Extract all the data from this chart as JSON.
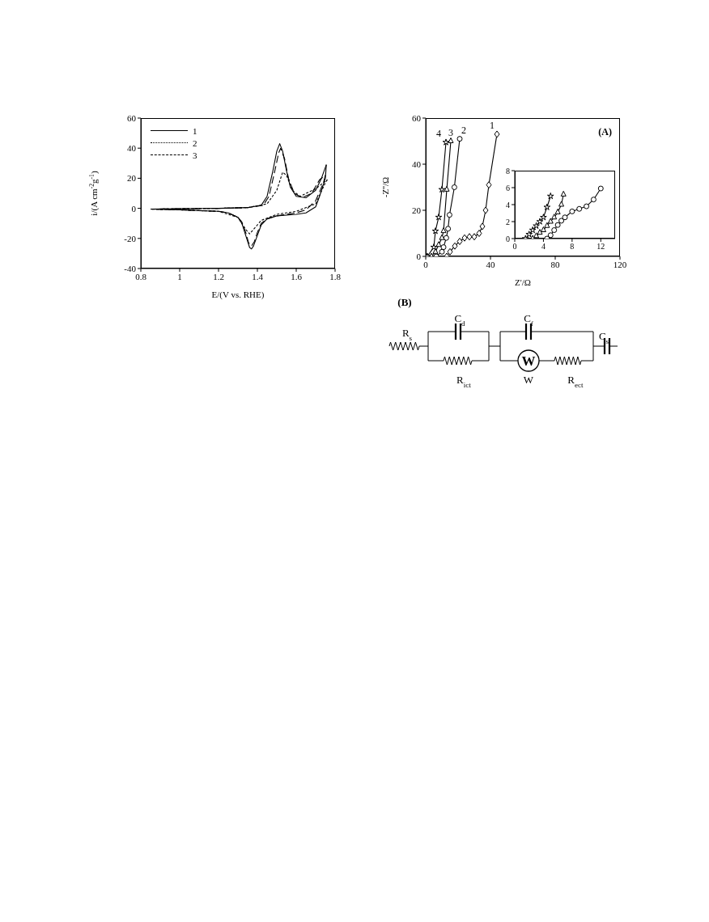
{
  "chart_data": [
    {
      "type": "line",
      "xlabel": "E/(V vs. RHE)",
      "ylabel": "i/(A cm$^{-2}$g$^{-1}$)",
      "xlim": [
        0.8,
        1.8
      ],
      "xticks": [
        0.8,
        1,
        1.2,
        1.4,
        1.6,
        1.8
      ],
      "ylim": [
        -40,
        60
      ],
      "yticks": [
        -40,
        -20,
        0,
        20,
        40,
        60
      ],
      "legend": "top left",
      "series": [
        {
          "name": "1",
          "color": "#000000",
          "line_style": "solid",
          "x": [
            0.85,
            1.0,
            1.2,
            1.35,
            1.42,
            1.45,
            1.48,
            1.5,
            1.515,
            1.53,
            1.55,
            1.57,
            1.6,
            1.65,
            1.7,
            1.73,
            1.755
          ],
          "values": [
            -0.5,
            -0.3,
            0,
            0.5,
            2,
            8,
            25,
            38,
            43,
            38,
            25,
            14,
            8,
            7,
            12,
            20,
            29
          ]
        },
        {
          "color": "#000000",
          "line_style": "solid",
          "x": [
            1.755,
            1.75,
            1.72,
            1.7,
            1.65,
            1.6,
            1.5,
            1.45,
            1.42,
            1.4,
            1.38,
            1.37,
            1.36,
            1.34,
            1.32,
            1.3,
            1.25,
            1.2,
            1.0,
            0.85
          ],
          "values": [
            29,
            20,
            8,
            1,
            -3,
            -4,
            -5,
            -7,
            -11,
            -18,
            -25,
            -27,
            -26,
            -18,
            -10,
            -6,
            -3,
            -2,
            -1,
            -0.5
          ]
        },
        {
          "name": "2",
          "color": "#000000",
          "line_style": "dotted",
          "x": [
            0.85,
            1.0,
            1.2,
            1.35,
            1.45,
            1.5,
            1.53,
            1.55,
            1.58,
            1.62,
            1.7,
            1.76
          ],
          "values": [
            -0.5,
            -0.3,
            0,
            0.5,
            3,
            12,
            24,
            22,
            12,
            8,
            13,
            19
          ]
        },
        {
          "color": "#000000",
          "line_style": "dotted",
          "x": [
            1.76,
            1.75,
            1.7,
            1.6,
            1.5,
            1.42,
            1.38,
            1.36,
            1.34,
            1.3,
            1.2,
            1.0,
            0.85
          ],
          "values": [
            19,
            17,
            3,
            -2,
            -4,
            -8,
            -14,
            -17,
            -14,
            -6,
            -2,
            -1,
            -0.5
          ]
        },
        {
          "name": "3",
          "color": "#000000",
          "line_style": "dashed",
          "x": [
            0.85,
            1.0,
            1.2,
            1.35,
            1.43,
            1.46,
            1.49,
            1.51,
            1.52,
            1.54,
            1.56,
            1.59,
            1.63,
            1.68,
            1.72,
            1.75
          ],
          "values": [
            -0.5,
            -0.3,
            0,
            0.5,
            2,
            8,
            25,
            37,
            40,
            33,
            20,
            10,
            7,
            10,
            19,
            22
          ]
        },
        {
          "color": "#000000",
          "line_style": "dashed",
          "x": [
            1.75,
            1.74,
            1.7,
            1.65,
            1.6,
            1.5,
            1.45,
            1.42,
            1.4,
            1.385,
            1.37,
            1.355,
            1.34,
            1.32,
            1.3,
            1.25,
            1.2,
            1.0,
            0.85
          ],
          "values": [
            22,
            17,
            5,
            -1,
            -3,
            -5,
            -7,
            -10,
            -16,
            -22,
            -25,
            -23,
            -16,
            -9,
            -6,
            -3,
            -2,
            -1,
            -0.5
          ]
        }
      ]
    },
    {
      "type": "line",
      "xlabel": "Z'/Ω",
      "ylabel": "-Z''/Ω",
      "xlim": [
        0,
        120
      ],
      "xticks": [
        0,
        40,
        80,
        120
      ],
      "ylim": [
        0,
        60
      ],
      "yticks": [
        0,
        20,
        40,
        60
      ],
      "annotations": [
        "(A)"
      ],
      "series": [
        {
          "name": "1",
          "color": "#000000",
          "marker": "diamond",
          "x": [
            13,
            15,
            18,
            21,
            24,
            27,
            30,
            33,
            35,
            37,
            39,
            44
          ],
          "values": [
            0,
            2,
            4.5,
            6.5,
            8,
            8.5,
            8.5,
            10,
            13,
            20,
            31,
            53
          ]
        },
        {
          "name": "2",
          "color": "#000000",
          "marker": "circle",
          "x": [
            6.5,
            10,
            11,
            12.7,
            13.8,
            14.7,
            17.7,
            21
          ],
          "values": [
            0,
            2,
            4,
            8,
            12,
            18,
            30,
            51
          ]
        },
        {
          "name": "3",
          "color": "#000000",
          "marker": "triangle",
          "x": [
            3.5,
            6,
            8,
            10,
            11,
            13,
            15.5
          ],
          "values": [
            0,
            2,
            5,
            8,
            11,
            29,
            50
          ]
        },
        {
          "name": "4",
          "color": "#000000",
          "marker": "star",
          "x": [
            1,
            5,
            6,
            8,
            10,
            12.5
          ],
          "values": [
            0,
            4,
            11,
            17,
            29,
            49.5
          ]
        }
      ]
    },
    {
      "type": "line",
      "xlim": [
        0,
        14
      ],
      "xticks": [
        0,
        4,
        8,
        12
      ],
      "ylim": [
        0,
        8
      ],
      "yticks": [
        0,
        2,
        4,
        6,
        8
      ],
      "series": [
        {
          "color": "#000000",
          "marker": "star",
          "x": [
            1.5,
            2,
            2.5,
            3,
            3.5,
            4,
            4.5,
            5
          ],
          "values": [
            0,
            0.5,
            1,
            1.5,
            2,
            2.5,
            3.7,
            5
          ]
        },
        {
          "color": "#000000",
          "marker": "triangle",
          "x": [
            2.5,
            3,
            3.5,
            4,
            4.5,
            5,
            5.5,
            6,
            6.5,
            6.8
          ],
          "values": [
            0,
            0.3,
            0.7,
            1,
            1.5,
            2,
            2.5,
            3.1,
            4,
            5.2
          ]
        },
        {
          "color": "#000000",
          "marker": "circle",
          "x": [
            4.5,
            5,
            5.5,
            6,
            6.5,
            7,
            8,
            9,
            10,
            11,
            12
          ],
          "values": [
            0,
            0.4,
            1,
            1.6,
            2.1,
            2.5,
            3.2,
            3.5,
            3.8,
            4.6,
            5.9
          ]
        }
      ]
    },
    {
      "type": "other",
      "annotations": [
        "(B)",
        "R$_{s}$",
        "C$_{d}$",
        "C$_{f}$",
        "C$_{s}$",
        "R$_{ict}$",
        "W",
        "R$_{ect}$",
        "W"
      ]
    }
  ]
}
